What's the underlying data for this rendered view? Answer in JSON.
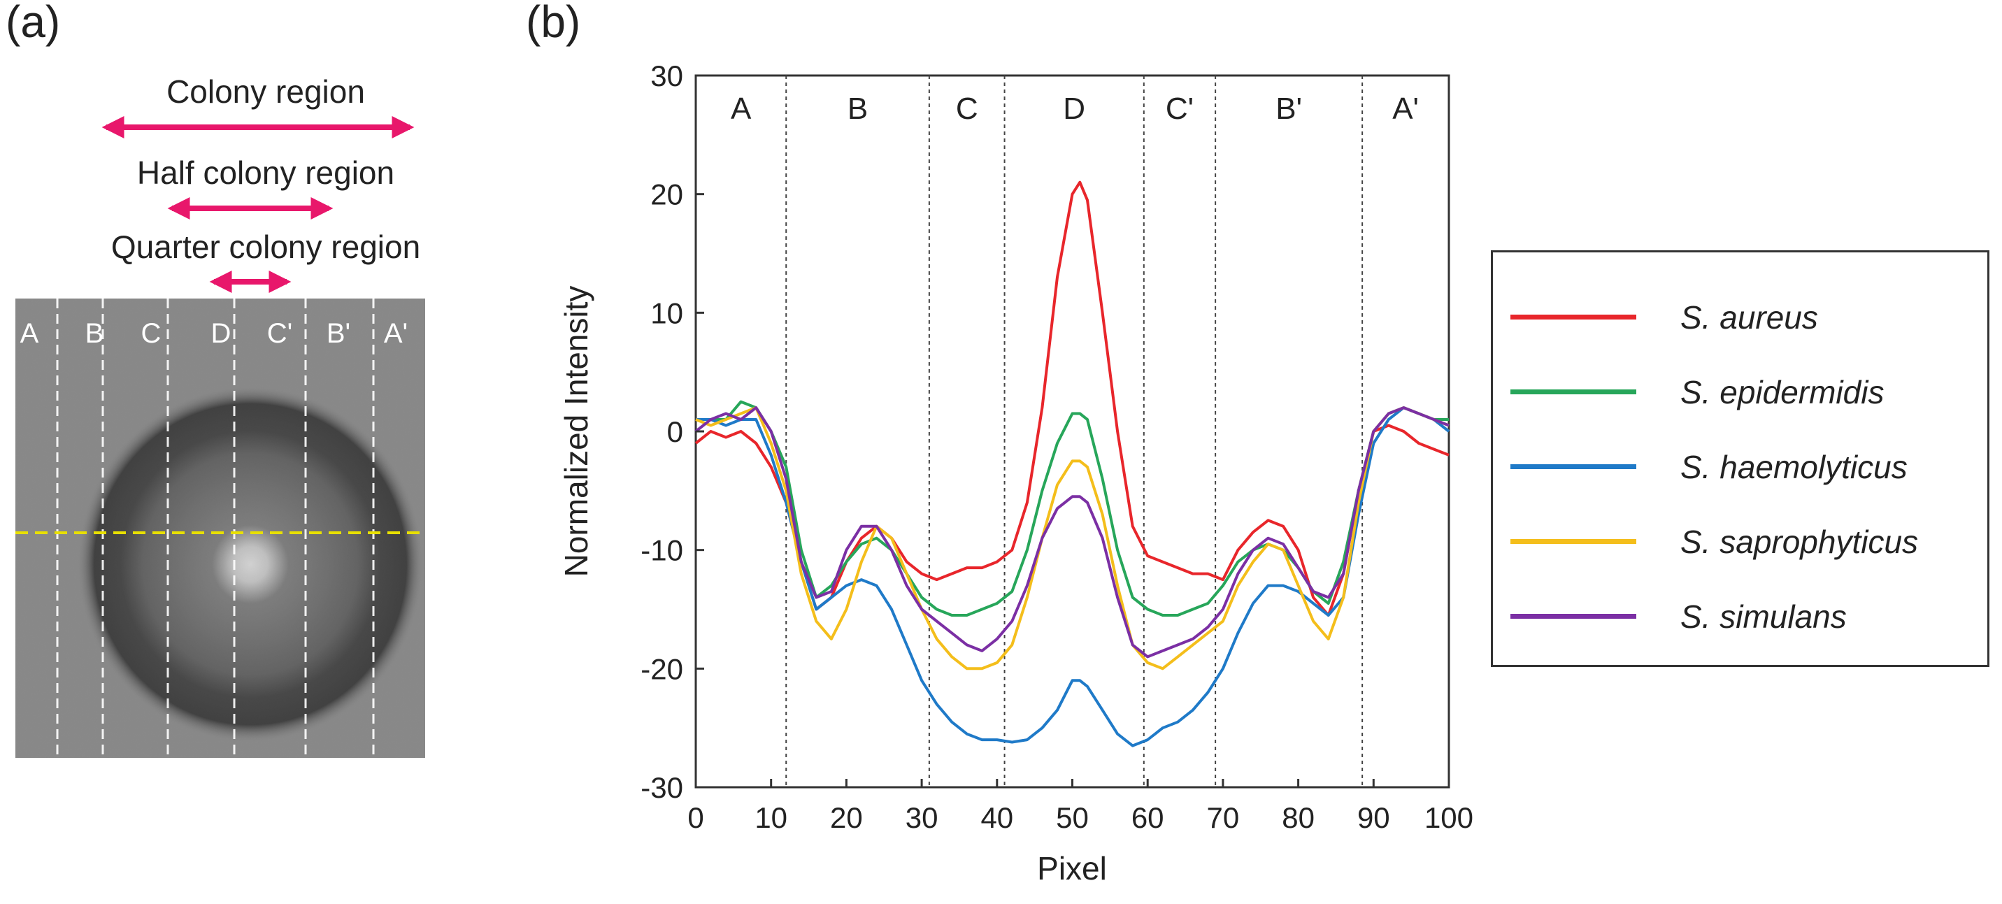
{
  "panel_a": {
    "label": "(a)",
    "colony_region_label": "Colony region",
    "half_colony_region_label": "Half colony region",
    "quarter_colony_region_label": "Quarter colony region",
    "image_region_labels": [
      "A",
      "B",
      "C",
      "D",
      "C'",
      "B'",
      "A'"
    ],
    "arrow_color": "#e8176b",
    "scan_line_color": "#e8e000"
  },
  "panel_b": {
    "label": "(b)"
  },
  "chart_data": {
    "type": "line",
    "title": "",
    "xlabel": "Pixel",
    "ylabel": "Normalized Intensity",
    "xlim": [
      0,
      100
    ],
    "ylim": [
      -30,
      30
    ],
    "xticks": [
      0,
      10,
      20,
      30,
      40,
      50,
      60,
      70,
      80,
      90,
      100
    ],
    "yticks": [
      -30,
      -20,
      -10,
      0,
      10,
      20,
      30
    ],
    "grid": false,
    "legend_position": "right-outside",
    "region_boundaries": [
      12,
      31,
      41,
      59.5,
      69,
      88.5
    ],
    "region_labels": [
      "A",
      "B",
      "C",
      "D",
      "C'",
      "B'",
      "A'"
    ],
    "x": [
      0,
      2,
      4,
      6,
      8,
      10,
      12,
      14,
      16,
      18,
      20,
      22,
      24,
      26,
      28,
      30,
      32,
      34,
      36,
      38,
      40,
      42,
      44,
      46,
      48,
      50,
      51,
      52,
      54,
      56,
      58,
      60,
      62,
      64,
      66,
      68,
      70,
      72,
      74,
      76,
      78,
      80,
      82,
      84,
      86,
      88,
      90,
      92,
      94,
      96,
      98,
      100
    ],
    "series": [
      {
        "name": "S. aureus",
        "color": "#e8262b",
        "values": [
          -1,
          0,
          -0.5,
          0,
          -1,
          -3,
          -6,
          -11,
          -15,
          -14,
          -11,
          -9,
          -8,
          -9,
          -11,
          -12,
          -12.5,
          -12,
          -11.5,
          -11.5,
          -11,
          -10,
          -6,
          2,
          13,
          20,
          21,
          19.5,
          10,
          0,
          -8,
          -10.5,
          -11,
          -11.5,
          -12,
          -12,
          -12.5,
          -10,
          -8.5,
          -7.5,
          -8,
          -10,
          -14,
          -15.5,
          -12,
          -5,
          0,
          0.5,
          0,
          -1,
          -1.5,
          -2
        ]
      },
      {
        "name": "S. epidermidis",
        "color": "#27a65a",
        "values": [
          1,
          1,
          1,
          2.5,
          2,
          0,
          -3,
          -10,
          -14,
          -13,
          -11,
          -9.5,
          -9,
          -10,
          -12,
          -14,
          -15,
          -15.5,
          -15.5,
          -15,
          -14.5,
          -13.5,
          -10,
          -5,
          -1,
          1.5,
          1.5,
          1,
          -4,
          -10,
          -14,
          -15,
          -15.5,
          -15.5,
          -15,
          -14.5,
          -13,
          -11,
          -10,
          -9.5,
          -10,
          -11.5,
          -13.5,
          -14.5,
          -11,
          -5,
          0,
          1.5,
          2,
          1.5,
          1,
          1
        ]
      },
      {
        "name": "S. haemolyticus",
        "color": "#1f7ac8",
        "values": [
          1,
          1,
          0.5,
          1,
          1,
          -2,
          -6,
          -11,
          -15,
          -14,
          -13,
          -12.5,
          -13,
          -15,
          -18,
          -21,
          -23,
          -24.5,
          -25.5,
          -26,
          -26,
          -26.2,
          -26,
          -25,
          -23.5,
          -21,
          -21,
          -21.5,
          -23.5,
          -25.5,
          -26.5,
          -26,
          -25,
          -24.5,
          -23.5,
          -22,
          -20,
          -17,
          -14.5,
          -13,
          -13,
          -13.5,
          -14.5,
          -15.5,
          -14,
          -7,
          -1,
          1,
          2,
          1.5,
          1,
          0
        ]
      },
      {
        "name": "S. saprophyticus",
        "color": "#f4be1b",
        "values": [
          1,
          0.5,
          1,
          1.5,
          2,
          -1,
          -5,
          -12,
          -16,
          -17.5,
          -15,
          -11,
          -8,
          -9,
          -12,
          -15,
          -17.5,
          -19,
          -20,
          -20,
          -19.5,
          -18,
          -14,
          -9,
          -4.5,
          -2.5,
          -2.5,
          -3,
          -7,
          -13,
          -18,
          -19.5,
          -20,
          -19,
          -18,
          -17,
          -16,
          -13,
          -11,
          -9.5,
          -10,
          -13,
          -16,
          -17.5,
          -14,
          -6,
          0,
          1.5,
          2,
          1.5,
          1,
          0.5
        ]
      },
      {
        "name": "S. simulans",
        "color": "#7b2fa4",
        "values": [
          0,
          1,
          1.5,
          1,
          2,
          0,
          -4,
          -11,
          -14,
          -13.5,
          -10,
          -8,
          -8,
          -10,
          -13,
          -15,
          -16,
          -17,
          -18,
          -18.5,
          -17.5,
          -16,
          -13,
          -9,
          -6.5,
          -5.5,
          -5.5,
          -6,
          -9,
          -14,
          -18,
          -19,
          -18.5,
          -18,
          -17.5,
          -16.5,
          -15,
          -12,
          -10,
          -9,
          -9.5,
          -11.5,
          -13.5,
          -14,
          -12,
          -5,
          0,
          1.5,
          2,
          1.5,
          1,
          0.5
        ]
      }
    ]
  }
}
